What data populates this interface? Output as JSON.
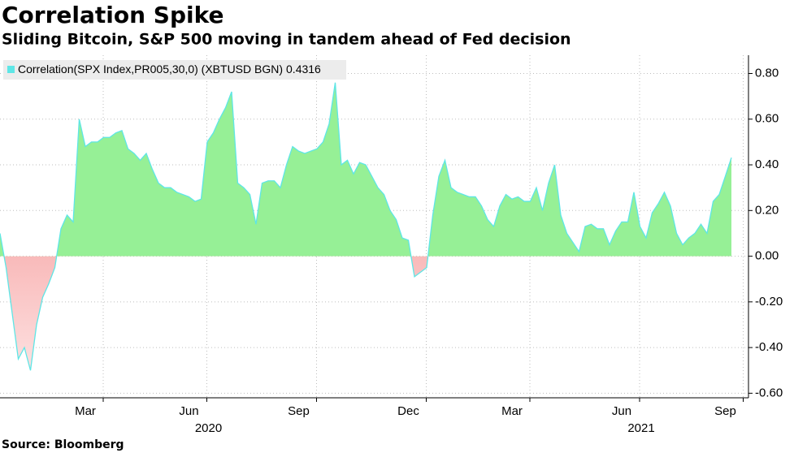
{
  "chart_data": {
    "type": "area",
    "title": "Correlation Spike",
    "subtitle": "Sliding Bitcoin, S&P 500 moving in tandem ahead of Fed decision",
    "source": "Source: Bloomberg",
    "categories": [
      null,
      null,
      null,
      null,
      null,
      null,
      null,
      null,
      null,
      null,
      null,
      null,
      null,
      null,
      "Mar",
      null,
      null,
      null,
      null,
      null,
      null,
      null,
      null,
      null,
      null,
      null,
      null,
      null,
      null,
      null,
      null,
      "Jun",
      null,
      null,
      null,
      null,
      null,
      null,
      null,
      null,
      null,
      null,
      null,
      null,
      null,
      null,
      null,
      null,
      null,
      "Sep",
      null,
      null,
      null,
      null,
      null,
      null,
      null,
      null,
      null,
      null,
      null,
      null,
      null,
      null,
      null,
      null,
      null,
      "Dec",
      null,
      null,
      null,
      null,
      null,
      null,
      null,
      null,
      null,
      null,
      null,
      null,
      null,
      null,
      null,
      null,
      "Mar",
      null,
      null,
      null,
      null,
      null,
      null,
      null,
      null,
      null,
      null,
      null,
      null,
      null,
      null,
      null,
      null,
      null,
      "Jun",
      null,
      null,
      null,
      null,
      null,
      null,
      null,
      null,
      null,
      null,
      null,
      null,
      null,
      null,
      null,
      null,
      "Sep",
      null
    ],
    "years": [
      "2020",
      "2021"
    ],
    "series": [
      {
        "name": "Correlation(SPX Index,PR005,30,0) (XBTUSD BGN)",
        "color": "#5ee6e6",
        "positive_color": "#96f096",
        "negative_color": "#f28080",
        "values": [
          0.1,
          -0.05,
          -0.25,
          -0.45,
          -0.4,
          -0.5,
          -0.3,
          -0.18,
          -0.12,
          -0.05,
          0.12,
          0.18,
          0.15,
          0.6,
          0.48,
          0.5,
          0.5,
          0.52,
          0.52,
          0.54,
          0.55,
          0.47,
          0.45,
          0.42,
          0.45,
          0.38,
          0.32,
          0.3,
          0.3,
          0.28,
          0.27,
          0.26,
          0.24,
          0.25,
          0.5,
          0.54,
          0.6,
          0.65,
          0.72,
          0.32,
          0.3,
          0.27,
          0.14,
          0.32,
          0.33,
          0.33,
          0.3,
          0.4,
          0.48,
          0.46,
          0.45,
          0.46,
          0.47,
          0.5,
          0.58,
          0.76,
          0.4,
          0.42,
          0.36,
          0.41,
          0.4,
          0.35,
          0.3,
          0.27,
          0.2,
          0.16,
          0.08,
          0.07,
          -0.09,
          -0.07,
          -0.05,
          0.18,
          0.35,
          0.42,
          0.3,
          0.28,
          0.27,
          0.26,
          0.26,
          0.22,
          0.16,
          0.13,
          0.22,
          0.27,
          0.25,
          0.26,
          0.24,
          0.24,
          0.3,
          0.2,
          0.32,
          0.4,
          0.18,
          0.1,
          0.06,
          0.02,
          0.13,
          0.14,
          0.12,
          0.12,
          0.05,
          0.11,
          0.15,
          0.15,
          0.28,
          0.13,
          0.08,
          0.19,
          0.23,
          0.28,
          0.22,
          0.1,
          0.05,
          0.08,
          0.1,
          0.14,
          0.1,
          0.24,
          0.27,
          0.35,
          0.4316
        ]
      }
    ],
    "ylim": [
      -0.62,
      0.88
    ],
    "yticks": [
      {
        "value": 0.8,
        "label": "0.80"
      },
      {
        "value": 0.6,
        "label": "0.60"
      },
      {
        "value": 0.4,
        "label": "0.40"
      },
      {
        "value": 0.2,
        "label": "0.20"
      },
      {
        "value": 0,
        "label": "0.00"
      },
      {
        "value": -0.2,
        "label": "-0.20"
      },
      {
        "value": -0.4,
        "label": "-0.40"
      },
      {
        "value": -0.6,
        "label": "-0.60"
      }
    ],
    "grid": true,
    "legend": "top-left"
  }
}
